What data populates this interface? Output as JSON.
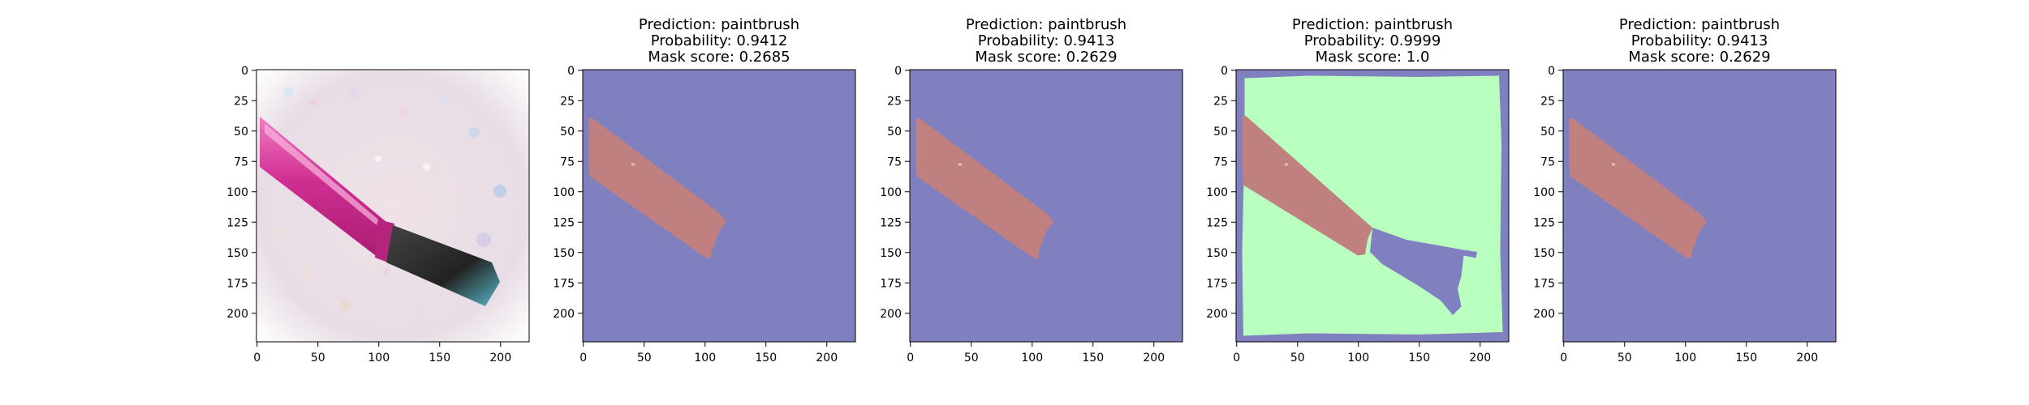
{
  "figure": {
    "panels": [
      {
        "kind": "photo",
        "title_lines": [],
        "x_ticks": [
          "0",
          "50",
          "100",
          "150",
          "200"
        ],
        "y_ticks": [
          "0",
          "25",
          "50",
          "75",
          "100",
          "125",
          "150",
          "175",
          "200"
        ],
        "description": ""
      },
      {
        "kind": "mask",
        "title_lines": [
          "Prediction: paintbrush",
          "Probability: 0.9412",
          "Mask score: 0.2685"
        ],
        "x_ticks": [
          "0",
          "50",
          "100",
          "150",
          "200"
        ],
        "y_ticks": [
          "0",
          "25",
          "50",
          "75",
          "100",
          "125",
          "150",
          "175",
          "200"
        ],
        "variant": "brush"
      },
      {
        "kind": "mask",
        "title_lines": [
          "Prediction: paintbrush",
          "Probability: 0.9413",
          "Mask score: 0.2629"
        ],
        "x_ticks": [
          "0",
          "50",
          "100",
          "150",
          "200"
        ],
        "y_ticks": [
          "0",
          "25",
          "50",
          "75",
          "100",
          "125",
          "150",
          "175",
          "200"
        ],
        "variant": "brush"
      },
      {
        "kind": "mask",
        "title_lines": [
          "Prediction: paintbrush",
          "Probability: 0.9999",
          "Mask score: 1.0"
        ],
        "x_ticks": [
          "0",
          "50",
          "100",
          "150",
          "200"
        ],
        "y_ticks": [
          "0",
          "25",
          "50",
          "75",
          "100",
          "125",
          "150",
          "175",
          "200"
        ],
        "variant": "full"
      },
      {
        "kind": "mask",
        "title_lines": [
          "Prediction: paintbrush",
          "Probability: 0.9413",
          "Mask score: 0.2629"
        ],
        "x_ticks": [
          "0",
          "50",
          "100",
          "150",
          "200"
        ],
        "y_ticks": [
          "0",
          "25",
          "50",
          "75",
          "100",
          "125",
          "150",
          "175",
          "200"
        ],
        "variant": "brush"
      }
    ],
    "colors": {
      "background_mask": "#8080c0",
      "brush_region": "#c08080",
      "object_region": "#b8ffc0",
      "photo_pink": "#d23c96",
      "photo_background": "#efe6ee"
    }
  }
}
